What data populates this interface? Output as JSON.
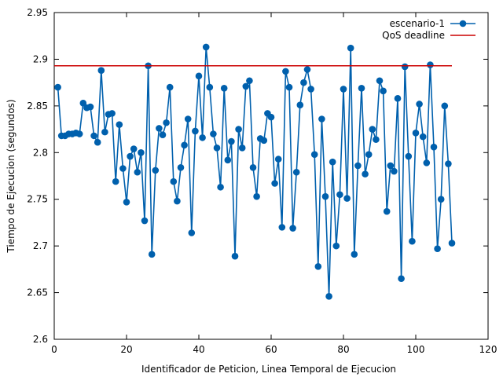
{
  "chart_data": {
    "type": "line",
    "xlabel": "Identificador de Peticion, Linea Temporal de Ejecucion",
    "ylabel": "Tiempo de Ejecucion (segundos)",
    "xlim": [
      0,
      120
    ],
    "ylim": [
      2.6,
      2.95
    ],
    "xticks": [
      "0",
      "20",
      "40",
      "60",
      "80",
      "100",
      "120"
    ],
    "yticks": [
      "2.6",
      "2.65",
      "2.7",
      "2.75",
      "2.8",
      "2.85",
      "2.9",
      "2.95"
    ],
    "grid": false,
    "legend_position": "top-right",
    "series": [
      {
        "name": "escenario-1",
        "color": "#0060ad",
        "x": [
          1,
          2,
          3,
          4,
          5,
          6,
          7,
          8,
          9,
          10,
          11,
          12,
          13,
          14,
          15,
          16,
          17,
          18,
          19,
          20,
          21,
          22,
          23,
          24,
          25,
          26,
          27,
          28,
          29,
          30,
          31,
          32,
          33,
          34,
          35,
          36,
          37,
          38,
          39,
          40,
          41,
          42,
          43,
          44,
          45,
          46,
          47,
          48,
          49,
          50,
          51,
          52,
          53,
          54,
          55,
          56,
          57,
          58,
          59,
          60,
          61,
          62,
          63,
          64,
          65,
          66,
          67,
          68,
          69,
          70,
          71,
          72,
          73,
          74,
          75,
          76,
          77,
          78,
          79,
          80,
          81,
          82,
          83,
          84,
          85,
          86,
          87,
          88,
          89,
          90,
          91,
          92,
          93,
          94,
          95,
          96,
          97,
          98,
          99,
          100,
          101,
          102,
          103,
          104,
          105,
          106,
          107,
          108,
          109,
          110
        ],
        "y": [
          2.87,
          2.818,
          2.818,
          2.82,
          2.82,
          2.821,
          2.82,
          2.853,
          2.848,
          2.849,
          2.818,
          2.811,
          2.888,
          2.822,
          2.841,
          2.842,
          2.769,
          2.83,
          2.783,
          2.747,
          2.796,
          2.804,
          2.779,
          2.8,
          2.727,
          2.893,
          2.691,
          2.781,
          2.826,
          2.819,
          2.832,
          2.87,
          2.769,
          2.748,
          2.784,
          2.808,
          2.836,
          2.714,
          2.823,
          2.882,
          2.816,
          2.913,
          2.87,
          2.82,
          2.805,
          2.763,
          2.869,
          2.792,
          2.812,
          2.689,
          2.825,
          2.805,
          2.871,
          2.877,
          2.784,
          2.753,
          2.815,
          2.813,
          2.842,
          2.838,
          2.767,
          2.793,
          2.72,
          2.887,
          2.87,
          2.719,
          2.779,
          2.851,
          2.875,
          2.889,
          2.868,
          2.798,
          2.678,
          2.836,
          2.753,
          2.646,
          2.79,
          2.7,
          2.755,
          2.868,
          2.751,
          2.912,
          2.691,
          2.786,
          2.869,
          2.777,
          2.798,
          2.825,
          2.814,
          2.877,
          2.866,
          2.737,
          2.786,
          2.78,
          2.858,
          2.665,
          2.892,
          2.796,
          2.705,
          2.821,
          2.852,
          2.817,
          2.789,
          2.894,
          2.806,
          2.697,
          2.75,
          2.85,
          2.788,
          2.703
        ]
      },
      {
        "name": "QoS deadline",
        "color": "#cc0000",
        "x": [
          0,
          110
        ],
        "y": [
          2.893,
          2.893
        ]
      }
    ]
  }
}
